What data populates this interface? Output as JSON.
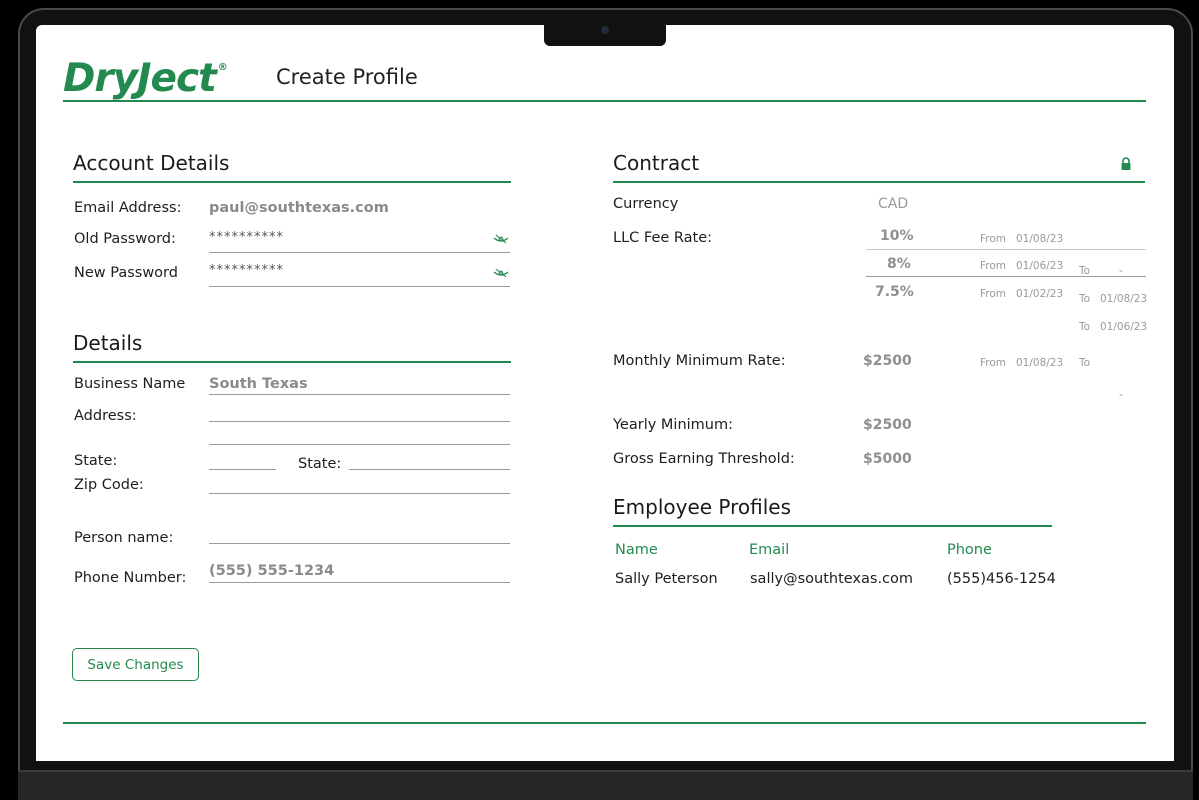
{
  "header": {
    "logo_text": "DryJect",
    "logo_mark": "®",
    "title": "Create Profile"
  },
  "account": {
    "title": "Account Details",
    "email_label": "Email Address:",
    "email_value": "paul@southtexas.com",
    "old_password_label": "Old Password:",
    "old_password_value": "**********",
    "new_password_label": "New Password",
    "new_password_value": "**********"
  },
  "details": {
    "title": "Details",
    "business_name_label": "Business Name",
    "business_name_value": "South Texas",
    "address_label": "Address:",
    "state_label": "State:",
    "state2_label": "State:",
    "zip_label": "Zip Code:",
    "person_label": "Person name:",
    "phone_label": "Phone Number:",
    "phone_value": "(555) 555-1234"
  },
  "contract": {
    "title": "Contract",
    "currency_label": "Currency",
    "currency_value": "CAD",
    "llc_label": "LLC Fee Rate:",
    "rates": [
      {
        "value": "10%",
        "from_label": "From",
        "from_date": "01/08/23"
      },
      {
        "value": "8%",
        "from_label": "From",
        "from_date": "01/06/23",
        "to_label": "To",
        "to_date": "-"
      },
      {
        "value": "7.5%",
        "from_label": "From",
        "from_date": "01/02/23",
        "to_label": "To",
        "to_date": "01/08/23"
      }
    ],
    "extra_to_label": "To",
    "extra_to_date": "01/06/23",
    "monthly_label": "Monthly Minimum Rate:",
    "monthly_value": "$2500",
    "monthly_from_label": "From",
    "monthly_from_date": "01/08/23",
    "monthly_to_label": "To",
    "monthly_to_date": "-",
    "yearly_label": "Yearly Minimum:",
    "yearly_value": "$2500",
    "gross_label": "Gross Earning Threshold:",
    "gross_value": "$5000"
  },
  "employees": {
    "title": "Employee Profiles",
    "columns": [
      "Name",
      "Email",
      "Phone"
    ],
    "rows": [
      {
        "name": "Sally Peterson",
        "email": "sally@southtexas.com",
        "phone": "(555)456-1254"
      }
    ]
  },
  "actions": {
    "save_label": "Save Changes"
  },
  "colors": {
    "accent": "#23894f",
    "text": "#1e1e1e",
    "muted": "#8a8a8a"
  },
  "icons": {
    "password_toggle": "eye-slash-icon",
    "contract_lock": "lock-icon"
  }
}
